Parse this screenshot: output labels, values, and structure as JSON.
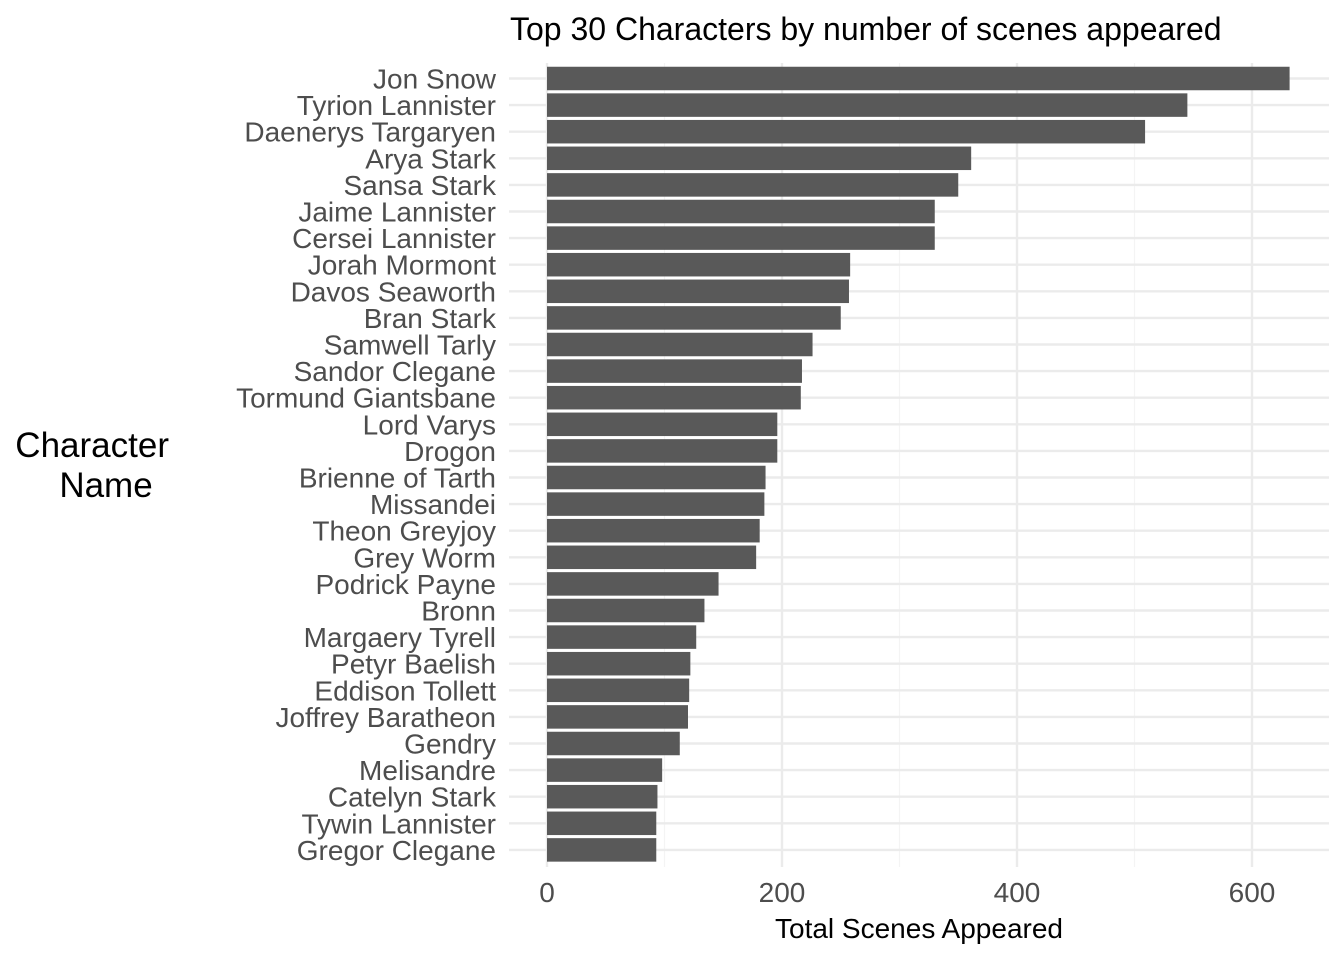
{
  "chart_data": {
    "type": "bar",
    "orientation": "horizontal",
    "title": "Top 30 Characters by number of scenes appeared",
    "xlabel": "Total Scenes Appeared",
    "ylabel": [
      "Character",
      "Name"
    ],
    "xlim": [
      0,
      660
    ],
    "xticks": [
      0,
      200,
      400,
      600
    ],
    "grid": true,
    "categories": [
      "Jon Snow",
      "Tyrion Lannister",
      "Daenerys Targaryen",
      "Arya Stark",
      "Sansa Stark",
      "Jaime Lannister",
      "Cersei Lannister",
      "Jorah Mormont",
      "Davos Seaworth",
      "Bran Stark",
      "Samwell Tarly",
      "Sandor Clegane",
      "Tormund Giantsbane",
      "Lord Varys",
      "Drogon",
      "Brienne of Tarth",
      "Missandei",
      "Theon Greyjoy",
      "Grey Worm",
      "Podrick Payne",
      "Bronn",
      "Margaery Tyrell",
      "Petyr Baelish",
      "Eddison Tollett",
      "Joffrey Baratheon",
      "Gendry",
      "Melisandre",
      "Catelyn Stark",
      "Tywin Lannister",
      "Gregor Clegane"
    ],
    "values": [
      632,
      545,
      509,
      361,
      350,
      330,
      330,
      258,
      257,
      250,
      226,
      217,
      216,
      196,
      196,
      186,
      185,
      181,
      178,
      146,
      134,
      127,
      122,
      121,
      120,
      113,
      98,
      94,
      93,
      93
    ],
    "colors": {
      "bar": "#595959",
      "grid_major": "#ebebeb",
      "grid_minor": "#f4f4f4"
    }
  }
}
